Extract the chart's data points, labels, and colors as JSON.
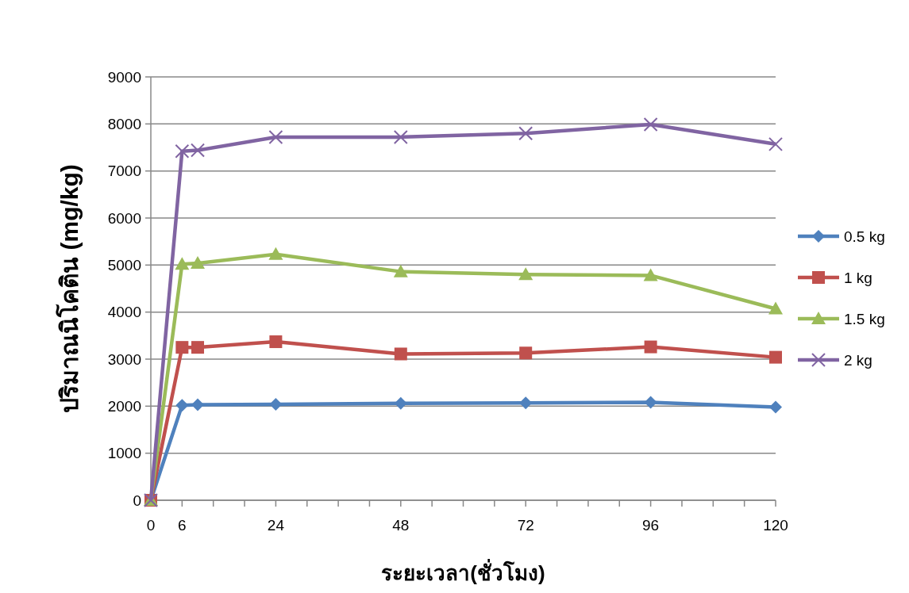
{
  "chart_data": {
    "type": "line",
    "xlabel": "ระยะเวลา(ชั่วโมง)",
    "ylabel": "ปริมาณนิโคติน (mg/kg)",
    "x": [
      0,
      6,
      9,
      24,
      48,
      72,
      96,
      120
    ],
    "xlim": [
      0,
      120
    ],
    "xticks": [
      0,
      6,
      {
        "value": 12,
        "label": null
      },
      {
        "value": 18,
        "label": null
      },
      24,
      {
        "value": 30,
        "label": null
      },
      {
        "value": 36,
        "label": null
      },
      {
        "value": 42,
        "label": null
      },
      48,
      {
        "value": 54,
        "label": null
      },
      {
        "value": 60,
        "label": null
      },
      {
        "value": 66,
        "label": null
      },
      72,
      {
        "value": 78,
        "label": null
      },
      {
        "value": 84,
        "label": null
      },
      {
        "value": 90,
        "label": null
      },
      96,
      {
        "value": 102,
        "label": null
      },
      {
        "value": 108,
        "label": null
      },
      {
        "value": 114,
        "label": null
      },
      120
    ],
    "ylim": [
      0,
      9000
    ],
    "yticks": [
      0,
      1000,
      2000,
      3000,
      4000,
      5000,
      6000,
      7000,
      8000,
      9000
    ],
    "grid": "y",
    "legend": "right",
    "series": [
      {
        "name": "0.5 kg",
        "color": "#4f81bd",
        "marker": "diamond",
        "values": [
          0,
          2020,
          2030,
          2040,
          2060,
          2070,
          2080,
          1980
        ]
      },
      {
        "name": "1 kg",
        "color": "#c0504d",
        "marker": "square",
        "values": [
          0,
          3250,
          3250,
          3370,
          3110,
          3130,
          3260,
          3040
        ]
      },
      {
        "name": "1.5 kg",
        "color": "#9bbb59",
        "marker": "triangle",
        "values": [
          0,
          5020,
          5040,
          5230,
          4860,
          4800,
          4780,
          4070
        ]
      },
      {
        "name": "2 kg",
        "color": "#8064a2",
        "marker": "cross",
        "values": [
          0,
          7420,
          7440,
          7720,
          7720,
          7800,
          7990,
          7570
        ]
      }
    ]
  }
}
